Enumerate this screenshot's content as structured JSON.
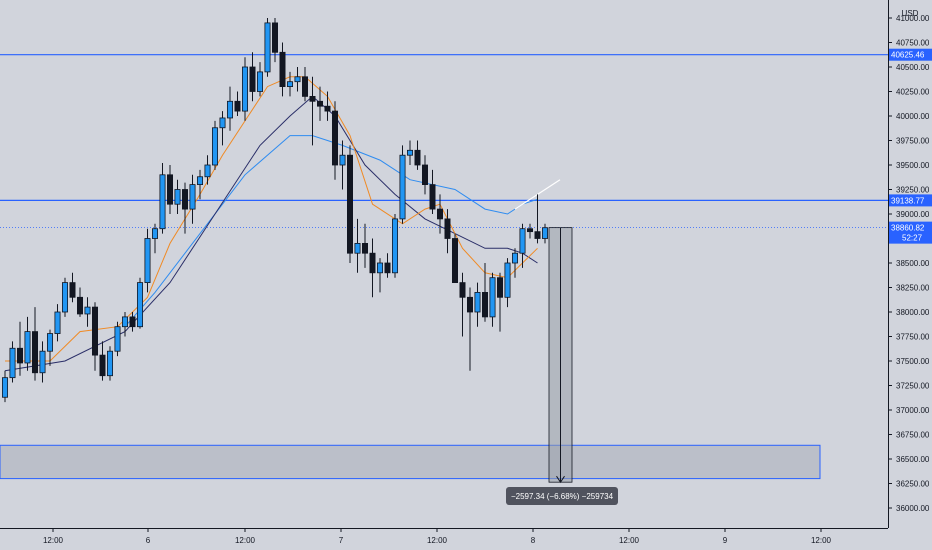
{
  "chart_data": {
    "type": "candlestick",
    "currency": "USD",
    "y_ticks": [
      41000,
      40750,
      40500,
      40250,
      40000,
      39750,
      39500,
      39250,
      39000,
      38750,
      38500,
      38250,
      38000,
      37750,
      37500,
      37250,
      37000,
      36750,
      36500,
      36250,
      36000
    ],
    "y_tick_labels": [
      "41000.00",
      "40750.00",
      "40500.00",
      "40250.00",
      "40000.00",
      "39750.00",
      "39500.00",
      "39250.00",
      "39000.00",
      "38750.00",
      "38500.00",
      "38250.00",
      "38000.00",
      "37750.00",
      "37500.00",
      "37250.00",
      "37000.00",
      "36750.00",
      "36500.00",
      "36250.00",
      "36000.00"
    ],
    "ylim": [
      35850,
      41100
    ],
    "x_tick_labels": [
      "12:00",
      "6",
      "12:00",
      "7",
      "12:00",
      "8",
      "12:00",
      "9",
      "12:00"
    ],
    "price_lines": [
      {
        "value": 40625.46,
        "label": "40625.46",
        "color": "#2962ff"
      },
      {
        "value": 39138.77,
        "label": "39138.77",
        "color": "#2962ff"
      }
    ],
    "last_price": {
      "value": 38860.82,
      "label": "38860.82",
      "countdown": "52:27"
    },
    "zone": {
      "low": 36300,
      "high": 36640
    },
    "measure": {
      "from": 38860.82,
      "to": 36263.48,
      "label": "−2597.34 (−6.68%) −259734"
    },
    "candles": [
      [
        37130,
        37400,
        37080,
        37330
      ],
      [
        37330,
        37700,
        37280,
        37630
      ],
      [
        37630,
        37900,
        37350,
        37480
      ],
      [
        37480,
        37950,
        37400,
        37800
      ],
      [
        37800,
        38050,
        37300,
        37380
      ],
      [
        37380,
        37700,
        37280,
        37600
      ],
      [
        37600,
        37820,
        37450,
        37780
      ],
      [
        37780,
        38080,
        37700,
        38000
      ],
      [
        38000,
        38350,
        37950,
        38300
      ],
      [
        38300,
        38400,
        38100,
        38150
      ],
      [
        38150,
        38250,
        37950,
        37980
      ],
      [
        37980,
        38150,
        37850,
        38050
      ],
      [
        38050,
        38100,
        37400,
        37560
      ],
      [
        37560,
        37700,
        37300,
        37350
      ],
      [
        37350,
        37650,
        37300,
        37600
      ],
      [
        37600,
        37900,
        37550,
        37850
      ],
      [
        37850,
        38000,
        37750,
        37950
      ],
      [
        37950,
        38000,
        37800,
        37850
      ],
      [
        37850,
        38350,
        37830,
        38300
      ],
      [
        38300,
        38850,
        38200,
        38750
      ],
      [
        38750,
        38900,
        38600,
        38850
      ],
      [
        38850,
        39520,
        38800,
        39400
      ],
      [
        39400,
        39500,
        39000,
        39100
      ],
      [
        39100,
        39350,
        39000,
        39250
      ],
      [
        39250,
        39320,
        38800,
        39050
      ],
      [
        39050,
        39400,
        38900,
        39300
      ],
      [
        39300,
        39450,
        39150,
        39380
      ],
      [
        39380,
        39600,
        39300,
        39500
      ],
      [
        39500,
        39950,
        39450,
        39880
      ],
      [
        39880,
        40050,
        39700,
        39980
      ],
      [
        39980,
        40300,
        39850,
        40150
      ],
      [
        40150,
        40250,
        40000,
        40050
      ],
      [
        40050,
        40600,
        39950,
        40500
      ],
      [
        40500,
        40650,
        40150,
        40250
      ],
      [
        40250,
        40550,
        40200,
        40450
      ],
      [
        40450,
        41000,
        40400,
        40950
      ],
      [
        40950,
        41000,
        40550,
        40650
      ],
      [
        40650,
        40750,
        40200,
        40300
      ],
      [
        40300,
        40450,
        40200,
        40350
      ],
      [
        40350,
        40500,
        40250,
        40400
      ],
      [
        40400,
        40500,
        40150,
        40200
      ],
      [
        40200,
        40400,
        39700,
        40150
      ],
      [
        40150,
        40300,
        39950,
        40100
      ],
      [
        40100,
        40250,
        39950,
        40050
      ],
      [
        40050,
        40150,
        39350,
        39500
      ],
      [
        39500,
        39750,
        39250,
        39600
      ],
      [
        39600,
        39700,
        38500,
        38600
      ],
      [
        38600,
        38950,
        38400,
        38700
      ],
      [
        38700,
        38900,
        38450,
        38600
      ],
      [
        38600,
        38750,
        38150,
        38400
      ],
      [
        38400,
        38550,
        38200,
        38500
      ],
      [
        38500,
        38600,
        38350,
        38400
      ],
      [
        38400,
        39000,
        38350,
        38950
      ],
      [
        38950,
        39700,
        38900,
        39600
      ],
      [
        39600,
        39750,
        39500,
        39650
      ],
      [
        39650,
        39750,
        39450,
        39500
      ],
      [
        39500,
        39600,
        39200,
        39300
      ],
      [
        39300,
        39450,
        39000,
        39050
      ],
      [
        39050,
        39200,
        38800,
        38950
      ],
      [
        38950,
        39050,
        38600,
        38750
      ],
      [
        38750,
        38800,
        38300,
        38300
      ],
      [
        38300,
        38400,
        37750,
        38150
      ],
      [
        38150,
        38250,
        37400,
        38000
      ],
      [
        38000,
        38300,
        37850,
        38200
      ],
      [
        38200,
        38500,
        37900,
        37950
      ],
      [
        37950,
        38400,
        37850,
        38350
      ],
      [
        38350,
        38400,
        37800,
        38150
      ],
      [
        38150,
        38550,
        38050,
        38500
      ],
      [
        38500,
        38650,
        38350,
        38600
      ],
      [
        38600,
        38900,
        38450,
        38850
      ],
      [
        38850,
        38900,
        38750,
        38820
      ],
      [
        38820,
        39200,
        38700,
        38750
      ],
      [
        38750,
        38900,
        38700,
        38860
      ]
    ],
    "ma_fast": [
      [
        0,
        37500
      ],
      [
        6,
        37500
      ],
      [
        10,
        37800
      ],
      [
        15,
        37850
      ],
      [
        19,
        38150
      ],
      [
        22,
        38700
      ],
      [
        26,
        39200
      ],
      [
        29,
        39600
      ],
      [
        32,
        39950
      ],
      [
        35,
        40300
      ],
      [
        38,
        40400
      ],
      [
        40,
        40400
      ],
      [
        43,
        40200
      ],
      [
        46,
        39800
      ],
      [
        49,
        39100
      ],
      [
        53,
        38900
      ],
      [
        56,
        39050
      ],
      [
        58,
        39100
      ],
      [
        61,
        38650
      ],
      [
        64,
        38400
      ],
      [
        67,
        38350
      ],
      [
        69,
        38500
      ],
      [
        71,
        38650
      ]
    ],
    "ma_mid": [
      [
        0,
        37400
      ],
      [
        8,
        37500
      ],
      [
        16,
        37800
      ],
      [
        22,
        38300
      ],
      [
        28,
        39000
      ],
      [
        34,
        39700
      ],
      [
        38,
        40000
      ],
      [
        41,
        40200
      ],
      [
        44,
        40000
      ],
      [
        48,
        39500
      ],
      [
        52,
        39200
      ],
      [
        56,
        38950
      ],
      [
        60,
        38800
      ],
      [
        64,
        38650
      ],
      [
        67,
        38650
      ],
      [
        69,
        38600
      ],
      [
        71,
        38500
      ]
    ],
    "ma_slow": [
      [
        16,
        37850
      ],
      [
        20,
        38200
      ],
      [
        26,
        38800
      ],
      [
        32,
        39400
      ],
      [
        38,
        39800
      ],
      [
        41,
        39800
      ],
      [
        45,
        39700
      ],
      [
        50,
        39550
      ],
      [
        54,
        39350
      ],
      [
        60,
        39250
      ],
      [
        64,
        39050
      ],
      [
        67,
        39000
      ],
      [
        69,
        39100
      ],
      [
        71,
        39150
      ]
    ],
    "trendline": [
      [
        68,
        39050
      ],
      [
        74,
        39350
      ]
    ]
  }
}
